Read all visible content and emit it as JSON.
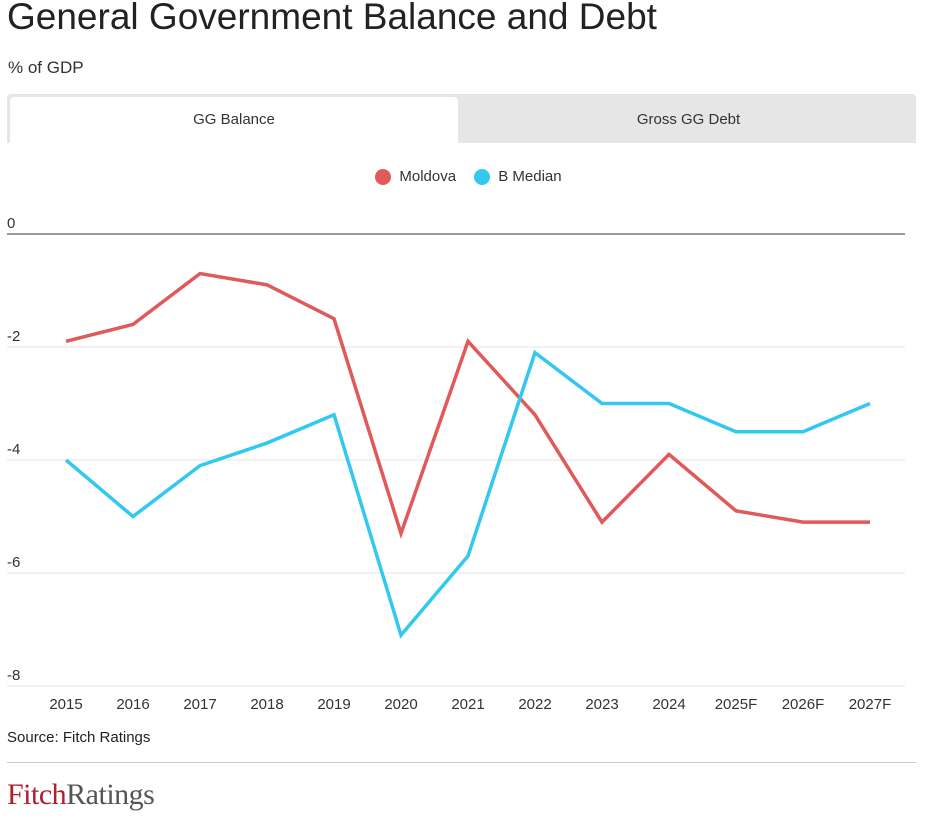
{
  "title": "General Government Balance and Debt",
  "subtitle": "% of GDP",
  "tabs": [
    {
      "label": "GG Balance",
      "active": true
    },
    {
      "label": "Gross GG Debt",
      "active": false
    }
  ],
  "legend": [
    {
      "label": "Moldova",
      "color": "#e05a5a"
    },
    {
      "label": "B Median",
      "color": "#33c8f0"
    }
  ],
  "chart_data": {
    "type": "line",
    "categories": [
      "2015",
      "2016",
      "2017",
      "2018",
      "2019",
      "2020",
      "2021",
      "2022",
      "2023",
      "2024",
      "2025F",
      "2026F",
      "2027F"
    ],
    "series": [
      {
        "name": "Moldova",
        "color": "#e05a5a",
        "values": [
          -1.9,
          -1.6,
          -0.7,
          -0.9,
          -1.5,
          -5.3,
          -1.9,
          -3.2,
          -5.1,
          -3.9,
          -4.9,
          -5.1,
          -5.1
        ]
      },
      {
        "name": "B Median",
        "color": "#33c8f0",
        "values": [
          -4.0,
          -5.0,
          -4.1,
          -3.7,
          -3.2,
          -7.1,
          -5.7,
          -2.1,
          -3.0,
          -3.0,
          -3.5,
          -3.5,
          -3.0
        ]
      }
    ],
    "yticks": [
      0,
      -2,
      -4,
      -6,
      -8
    ],
    "ylim": [
      -8,
      0
    ],
    "title": "General Government Balance and Debt",
    "ylabel": "% of GDP",
    "xlabel": ""
  },
  "source": "Source: Fitch Ratings",
  "logo": {
    "part1": "Fitch",
    "part2": "Ratings"
  }
}
